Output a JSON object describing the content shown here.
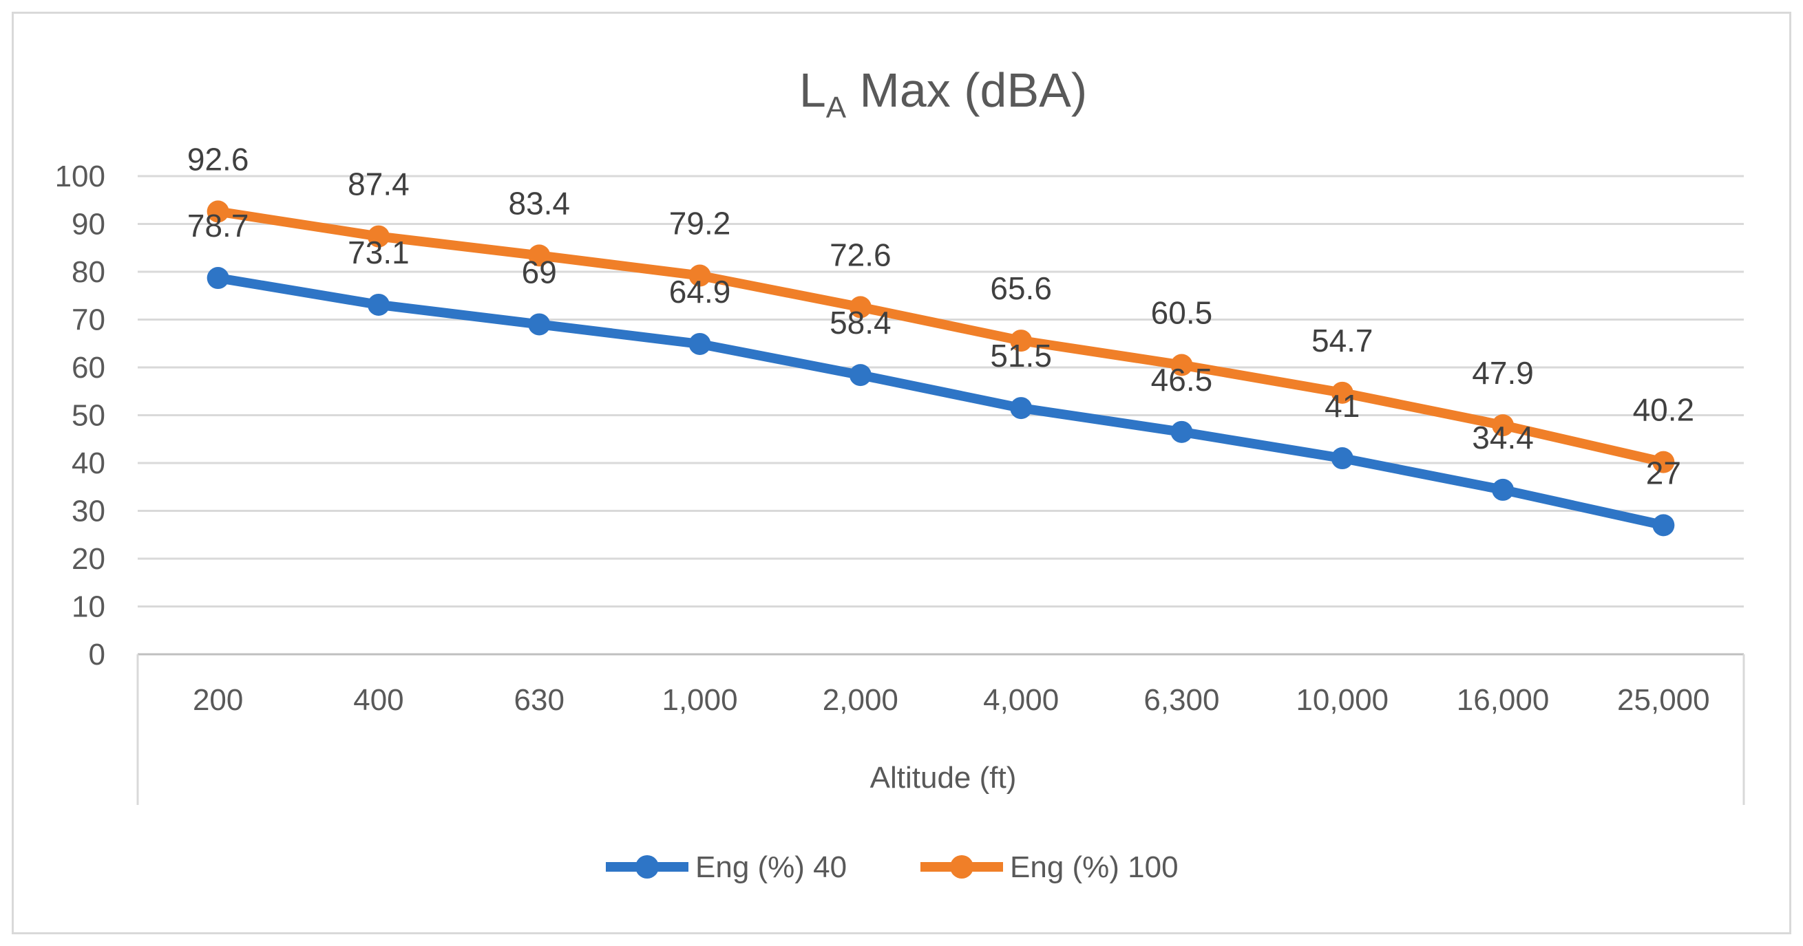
{
  "chart_data": {
    "type": "line",
    "title": "LA Max (dBA)",
    "title_main": "L",
    "title_sub": "A",
    "title_rest": " Max (dBA)",
    "xlabel": "Altitude (ft)",
    "ylabel": "",
    "ylim": [
      0,
      100
    ],
    "yticks": [
      0,
      10,
      20,
      30,
      40,
      50,
      60,
      70,
      80,
      90,
      100
    ],
    "categories": [
      "200",
      "400",
      "630",
      "1,000",
      "2,000",
      "4,000",
      "6,300",
      "10,000",
      "16,000",
      "25,000"
    ],
    "grid": true,
    "legend_position": "bottom",
    "series": [
      {
        "name": "Eng (%) 40",
        "color": "#2e75c6",
        "values": [
          78.7,
          73.1,
          69,
          64.9,
          58.4,
          51.5,
          46.5,
          41,
          34.4,
          27
        ]
      },
      {
        "name": "Eng (%) 100",
        "color": "#f07f28",
        "values": [
          92.6,
          87.4,
          83.4,
          79.2,
          72.6,
          65.6,
          60.5,
          54.7,
          47.9,
          40.2
        ]
      }
    ]
  }
}
